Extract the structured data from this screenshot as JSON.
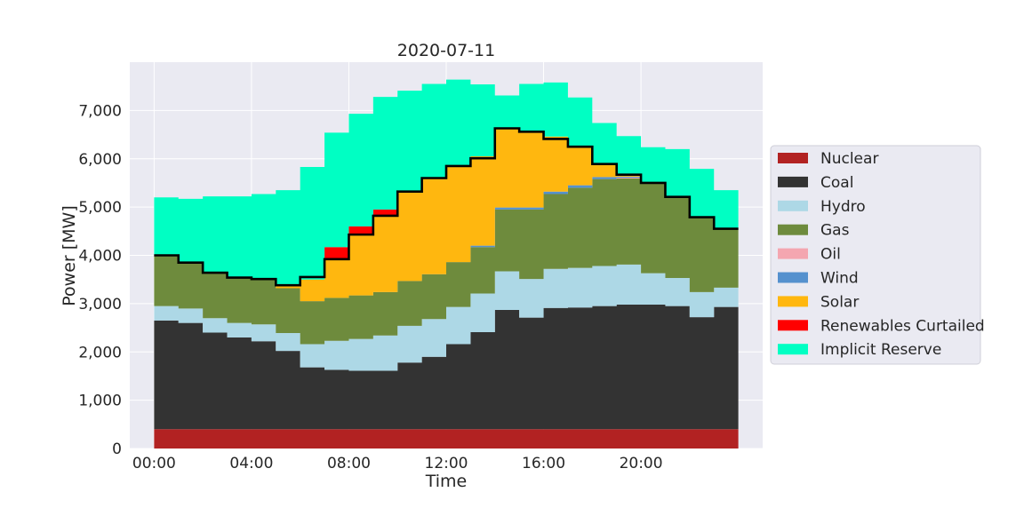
{
  "chart_data": {
    "type": "area",
    "title": "2020-07-11",
    "xlabel": "Time",
    "ylabel": "Power [MW]",
    "ylim": [
      0,
      8000
    ],
    "xlim": [
      -1,
      25
    ],
    "y_ticks": [
      0,
      1000,
      2000,
      3000,
      4000,
      5000,
      6000,
      7000
    ],
    "y_tick_labels": [
      "0",
      "1,000",
      "2,000",
      "3,000",
      "4,000",
      "5,000",
      "6,000",
      "7,000"
    ],
    "x_ticks": [
      0,
      4,
      8,
      12,
      16,
      20
    ],
    "x_tick_labels": [
      "00:00",
      "04:00",
      "08:00",
      "12:00",
      "16:00",
      "20:00"
    ],
    "step": "post",
    "x": [
      0,
      1,
      2,
      3,
      4,
      5,
      6,
      7,
      8,
      9,
      10,
      11,
      12,
      13,
      14,
      15,
      16,
      17,
      18,
      19,
      20,
      21,
      22,
      23
    ],
    "grid": true,
    "legend_position": "right",
    "series": [
      {
        "name": "Nuclear",
        "color": "#b22222",
        "values": [
          400,
          400,
          400,
          400,
          400,
          400,
          400,
          400,
          400,
          400,
          400,
          400,
          400,
          400,
          400,
          400,
          400,
          400,
          400,
          400,
          400,
          400,
          400,
          400
        ]
      },
      {
        "name": "Coal",
        "color": "#333333",
        "values": [
          2250,
          2200,
          2000,
          1900,
          1820,
          1620,
          1280,
          1230,
          1210,
          1210,
          1380,
          1500,
          1760,
          2010,
          2470,
          2310,
          2510,
          2520,
          2550,
          2580,
          2580,
          2550,
          2320,
          2530
        ]
      },
      {
        "name": "Hydro",
        "color": "#add8e6",
        "values": [
          300,
          300,
          300,
          300,
          350,
          370,
          480,
          600,
          660,
          730,
          760,
          780,
          770,
          800,
          800,
          800,
          810,
          820,
          830,
          830,
          650,
          580,
          520,
          400
        ]
      },
      {
        "name": "Gas",
        "color": "#6e8b3d",
        "values": [
          1050,
          950,
          940,
          940,
          940,
          930,
          890,
          890,
          900,
          900,
          930,
          930,
          930,
          960,
          1280,
          1440,
          1550,
          1660,
          1800,
          1780,
          1870,
          1680,
          1550,
          1220
        ]
      },
      {
        "name": "Oil",
        "color": "#f4a6b0",
        "values": [
          0,
          0,
          0,
          0,
          0,
          0,
          0,
          0,
          0,
          0,
          0,
          0,
          0,
          0,
          0,
          0,
          0,
          0,
          0,
          20,
          0,
          0,
          0,
          0
        ]
      },
      {
        "name": "Wind",
        "color": "#5591ce",
        "values": [
          0,
          0,
          0,
          0,
          0,
          0,
          0,
          0,
          0,
          0,
          0,
          0,
          0,
          30,
          40,
          40,
          50,
          50,
          40,
          20,
          0,
          0,
          0,
          0
        ]
      },
      {
        "name": "Solar",
        "color": "#ffb70f",
        "values": [
          0,
          0,
          0,
          0,
          0,
          60,
          450,
          800,
          1260,
          1580,
          1850,
          1990,
          1990,
          1850,
          1640,
          1570,
          1140,
          800,
          270,
          60,
          0,
          0,
          0,
          0
        ]
      },
      {
        "name": "Renewables Curtailed",
        "color": "#ff0000",
        "values": [
          0,
          0,
          0,
          0,
          0,
          0,
          0,
          250,
          170,
          130,
          0,
          0,
          0,
          0,
          0,
          0,
          0,
          0,
          0,
          0,
          0,
          0,
          0,
          0
        ]
      },
      {
        "name": "Implicit Reserve",
        "color": "#00ffc3",
        "values": [
          1200,
          1320,
          1580,
          1680,
          1760,
          1970,
          2330,
          2370,
          2330,
          2330,
          2090,
          1950,
          1790,
          1490,
          680,
          990,
          1120,
          1020,
          850,
          780,
          740,
          990,
          1000,
          800
        ]
      }
    ],
    "demand_line": {
      "color": "#000000",
      "values": [
        4000,
        3850,
        3640,
        3540,
        3510,
        3380,
        3550,
        3920,
        4430,
        4820,
        5320,
        5600,
        5850,
        6010,
        6630,
        6560,
        6410,
        6250,
        5890,
        5670,
        5500,
        5210,
        4790,
        4550
      ]
    }
  }
}
